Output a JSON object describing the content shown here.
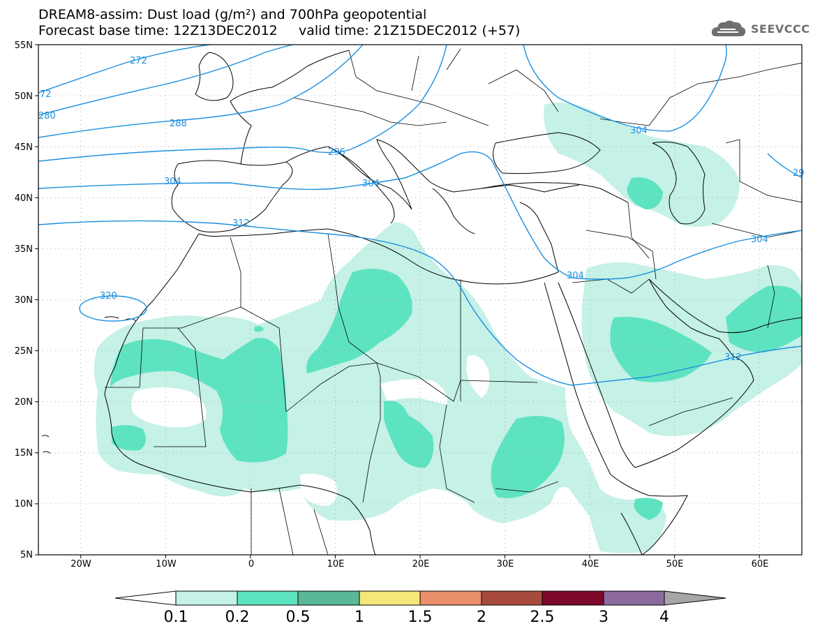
{
  "header": {
    "line1": "DREAM8-assim: Dust load (g/m²) and 700hPa geopotential",
    "line2": "Forecast base time: 12Z13DEC2012     valid time: 21Z15DEC2012 (+57)",
    "logo": "SEEVCCC",
    "logo_icon": "cloud-icon"
  },
  "map": {
    "lon_range": [
      -25,
      65
    ],
    "lat_range": [
      5,
      55
    ],
    "lon_ticks": [
      "20W",
      "10W",
      "0",
      "10E",
      "20E",
      "30E",
      "40E",
      "50E",
      "60E"
    ],
    "lat_ticks": [
      "55N",
      "50N",
      "45N",
      "40N",
      "35N",
      "30N",
      "25N",
      "20N",
      "15N",
      "10N",
      "5N"
    ],
    "contour_color": "#1b8fe0",
    "contour_labels": [
      "272",
      "72",
      "280",
      "288",
      "296",
      "304",
      "304",
      "304",
      "304",
      "304",
      "312",
      "312",
      "320",
      "29"
    ]
  },
  "colorbar": {
    "labels": [
      "0.1",
      "0.2",
      "0.5",
      "1",
      "1.5",
      "2",
      "2.5",
      "3",
      "4"
    ],
    "colors": [
      "#c5f1e7",
      "#5ee3c0",
      "#5bb896",
      "#f4e878",
      "#e9906a",
      "#a94a3f",
      "#7d0a2d",
      "#8d6a9e",
      "#a6a6a6"
    ],
    "low_end_color": "#ffffff"
  }
}
